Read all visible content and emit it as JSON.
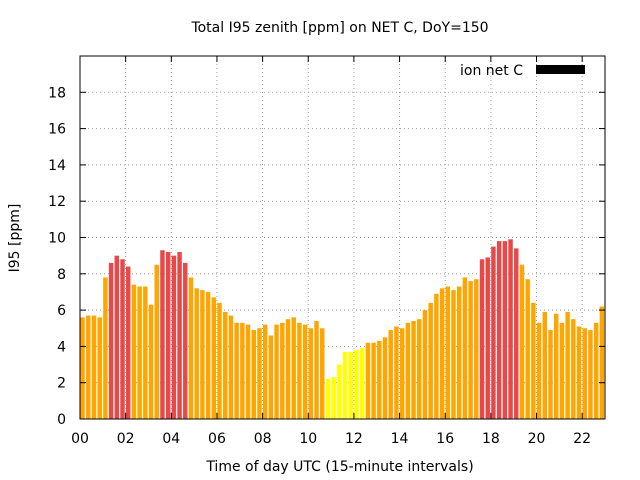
{
  "chart_data": {
    "type": "bar",
    "title": "Total I95 zenith [ppm] on NET C, DoY=150",
    "xlabel": "Time of day UTC (15-minute intervals)",
    "ylabel": "I95 [ppm]",
    "xlim": [
      0,
      23
    ],
    "ylim": [
      0,
      20
    ],
    "x_ticks": [
      "00",
      "02",
      "04",
      "06",
      "08",
      "10",
      "12",
      "14",
      "16",
      "18",
      "20",
      "22"
    ],
    "x_tick_values": [
      0,
      2,
      4,
      6,
      8,
      10,
      12,
      14,
      16,
      18,
      20,
      22
    ],
    "y_ticks": [
      "0",
      "2",
      "4",
      "6",
      "8",
      "10",
      "12",
      "14",
      "16",
      "18"
    ],
    "y_tick_values": [
      0,
      2,
      4,
      6,
      8,
      10,
      12,
      14,
      16,
      18
    ],
    "grid": true,
    "legend": {
      "position": "top-right",
      "entries": [
        "ion net C"
      ],
      "swatch_color": "#000000"
    },
    "bin_hours": 0.25,
    "colors": {
      "high": "#e84848",
      "medium": "#ffa500",
      "low": "#ffff00"
    },
    "series": [
      {
        "name": "ion net C",
        "x_start": 0,
        "values": [
          5.6,
          5.7,
          5.7,
          5.6,
          7.8,
          8.6,
          9.0,
          8.8,
          8.4,
          7.4,
          7.3,
          7.3,
          6.3,
          8.5,
          9.3,
          9.2,
          9.0,
          9.2,
          8.6,
          7.8,
          7.2,
          7.1,
          7.0,
          6.7,
          6.4,
          5.9,
          5.7,
          5.3,
          5.3,
          5.2,
          4.9,
          5.0,
          5.2,
          4.6,
          5.2,
          5.3,
          5.5,
          5.6,
          5.3,
          5.2,
          5.0,
          5.4,
          5.0,
          2.2,
          2.3,
          3.0,
          3.7,
          3.7,
          3.8,
          3.9,
          4.2,
          4.2,
          4.3,
          4.5,
          4.9,
          5.1,
          5.0,
          5.3,
          5.4,
          5.5,
          6.0,
          6.4,
          6.9,
          7.2,
          7.3,
          7.1,
          7.3,
          7.8,
          7.6,
          7.7,
          8.8,
          8.9,
          9.5,
          9.8,
          9.8,
          9.9,
          9.4,
          8.5,
          7.7,
          6.4,
          5.3,
          5.9,
          4.9,
          5.8,
          5.3,
          5.9,
          5.5,
          5.1,
          5.0,
          4.9,
          5.3,
          6.2
        ],
        "levels": [
          "medium",
          "medium",
          "medium",
          "medium",
          "medium",
          "high",
          "high",
          "high",
          "high",
          "medium",
          "medium",
          "medium",
          "medium",
          "medium",
          "high",
          "high",
          "high",
          "high",
          "high",
          "medium",
          "medium",
          "medium",
          "medium",
          "medium",
          "medium",
          "medium",
          "medium",
          "medium",
          "medium",
          "medium",
          "medium",
          "medium",
          "medium",
          "medium",
          "medium",
          "medium",
          "medium",
          "medium",
          "medium",
          "medium",
          "medium",
          "medium",
          "medium",
          "low",
          "low",
          "low",
          "low",
          "low",
          "low",
          "low",
          "medium",
          "medium",
          "medium",
          "medium",
          "medium",
          "medium",
          "medium",
          "medium",
          "medium",
          "medium",
          "medium",
          "medium",
          "medium",
          "medium",
          "medium",
          "medium",
          "medium",
          "medium",
          "medium",
          "medium",
          "high",
          "high",
          "high",
          "high",
          "high",
          "high",
          "high",
          "medium",
          "medium",
          "medium",
          "medium",
          "medium",
          "medium",
          "medium",
          "medium",
          "medium",
          "medium",
          "medium",
          "medium",
          "medium",
          "medium",
          "medium"
        ]
      }
    ]
  }
}
